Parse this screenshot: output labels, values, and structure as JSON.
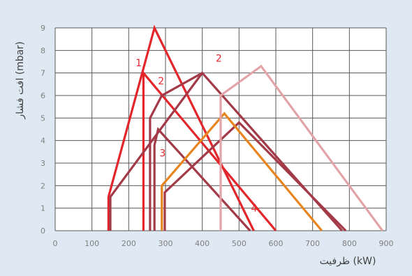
{
  "colors": {
    "background": "#dfe9f3",
    "plot_bg": "#ffffff",
    "grid": "#595959",
    "tick_text": "#7f7f7f",
    "axis_title": "#404040"
  },
  "chart_data": {
    "type": "line",
    "xlabel": "ظرفیت (kW)",
    "ylabel": "افت فشار (mbar)",
    "xlim": [
      0,
      900
    ],
    "ylim": [
      0,
      9
    ],
    "x_ticks": [
      0,
      100,
      200,
      300,
      400,
      500,
      600,
      700,
      800,
      900
    ],
    "y_ticks": [
      0,
      1,
      2,
      3,
      4,
      5,
      6,
      7,
      8,
      9
    ],
    "grid": true,
    "series": [
      {
        "color": "#e3262b",
        "points": [
          [
            145,
            0
          ],
          [
            145,
            1.5
          ],
          [
            270,
            9
          ],
          [
            540,
            0
          ]
        ]
      },
      {
        "color": "#e3262b",
        "points": [
          [
            240,
            0
          ],
          [
            240,
            7
          ],
          [
            600,
            0
          ]
        ]
      },
      {
        "color": "#a33a48",
        "points": [
          [
            150,
            0
          ],
          [
            150,
            1.5
          ],
          [
            400,
            7
          ],
          [
            780,
            0
          ]
        ]
      },
      {
        "color": "#a33a48",
        "points": [
          [
            258,
            0
          ],
          [
            258,
            5
          ],
          [
            290,
            6
          ],
          [
            400,
            7
          ]
        ]
      },
      {
        "color": "#a33a48",
        "points": [
          [
            270,
            0
          ],
          [
            270,
            3.8
          ],
          [
            280,
            4.5
          ],
          [
            530,
            0
          ]
        ]
      },
      {
        "color": "#a33a48",
        "points": [
          [
            298,
            0
          ],
          [
            298,
            1.7
          ],
          [
            500,
            4.8
          ],
          [
            790,
            0
          ]
        ]
      },
      {
        "color": "#e8851e",
        "points": [
          [
            290,
            0
          ],
          [
            290,
            2
          ],
          [
            460,
            5.2
          ],
          [
            725,
            0
          ]
        ]
      },
      {
        "color": "#e2a4a8",
        "points": [
          [
            450,
            0
          ],
          [
            450,
            6
          ],
          [
            560,
            7.3
          ],
          [
            890,
            0
          ]
        ]
      }
    ],
    "annotations": [
      {
        "text": "1",
        "x": 227,
        "y": 7.3,
        "color": "#e3262b"
      },
      {
        "text": "2",
        "x": 288,
        "y": 6.5,
        "color": "#e3262b"
      },
      {
        "text": "2",
        "x": 445,
        "y": 7.5,
        "color": "#e3262b"
      },
      {
        "text": "3",
        "x": 292,
        "y": 3.3,
        "color": "#e3262b"
      },
      {
        "text": "4",
        "x": 541,
        "y": 0.85,
        "color": "#e3262b"
      }
    ]
  }
}
